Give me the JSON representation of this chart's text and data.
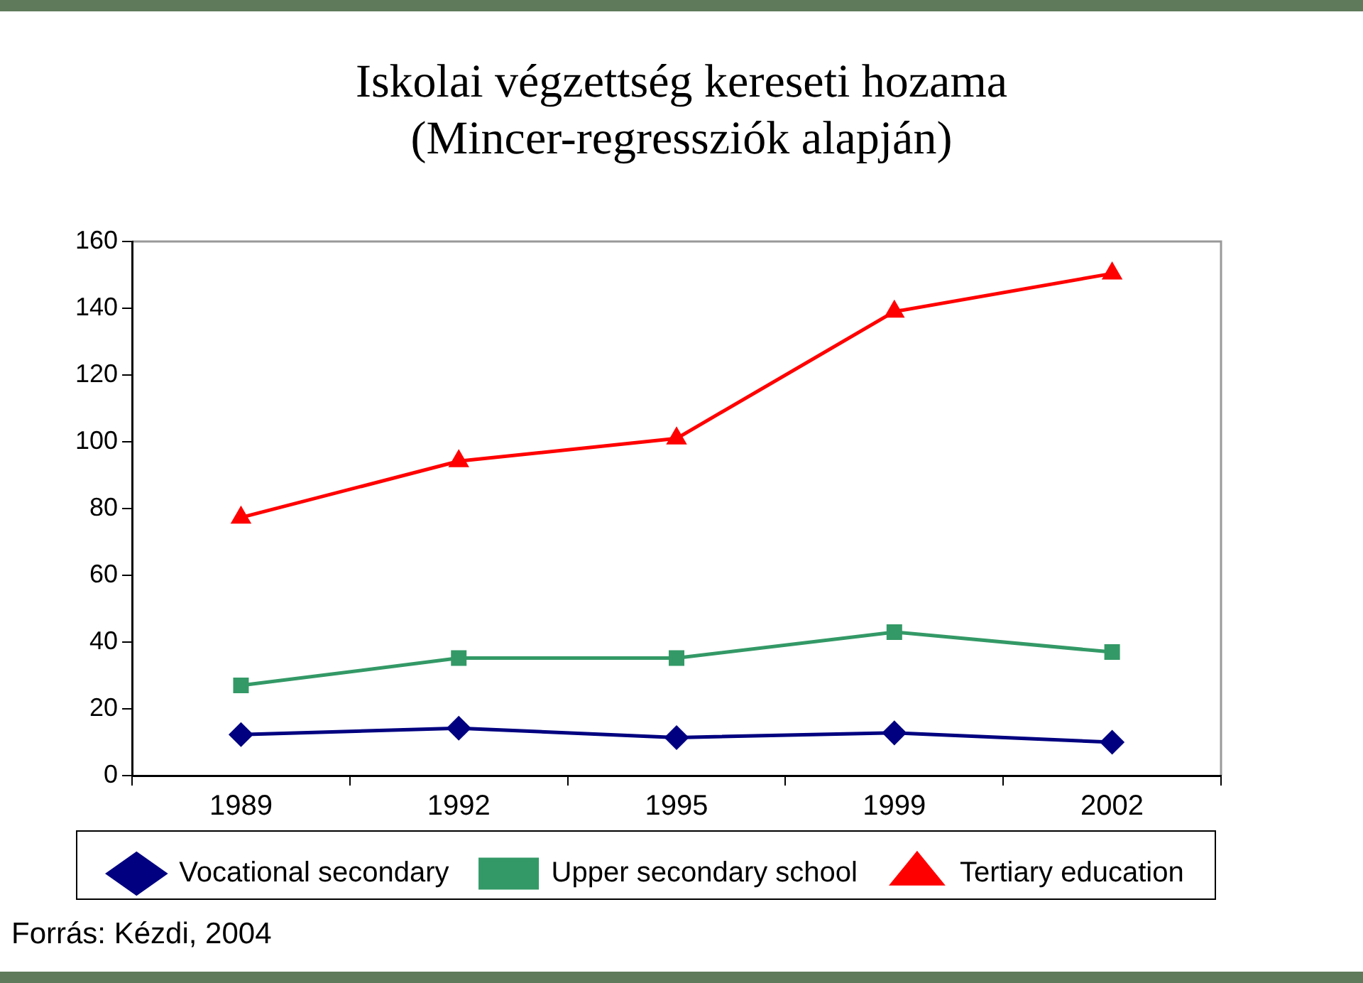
{
  "chart_data": {
    "type": "line",
    "title": "Iskolai végzettség kereseti hozama",
    "subtitle": "(Mincer-regressziók alapján)",
    "categories": [
      "1989",
      "1992",
      "1995",
      "1999",
      "2002"
    ],
    "series": [
      {
        "name": "Vocational secondary",
        "color": "#000080",
        "marker": "diamond",
        "values": [
          12.3,
          14.2,
          11.4,
          12.8,
          10
        ]
      },
      {
        "name": "Upper secondary school",
        "color": "#339966",
        "marker": "square",
        "values": [
          27,
          35.2,
          35.2,
          43,
          37
        ]
      },
      {
        "name": "Tertiary education",
        "color": "#ff0000",
        "marker": "triangle",
        "values": [
          77.3,
          94.2,
          101,
          139,
          150.4
        ]
      }
    ],
    "ylim": [
      0,
      160
    ],
    "yticks": [
      0,
      20,
      40,
      60,
      80,
      100,
      120,
      140,
      160
    ],
    "grid": false,
    "legend": "bottom",
    "annotations": [
      "Forrás: Kézdi, 2004"
    ]
  }
}
